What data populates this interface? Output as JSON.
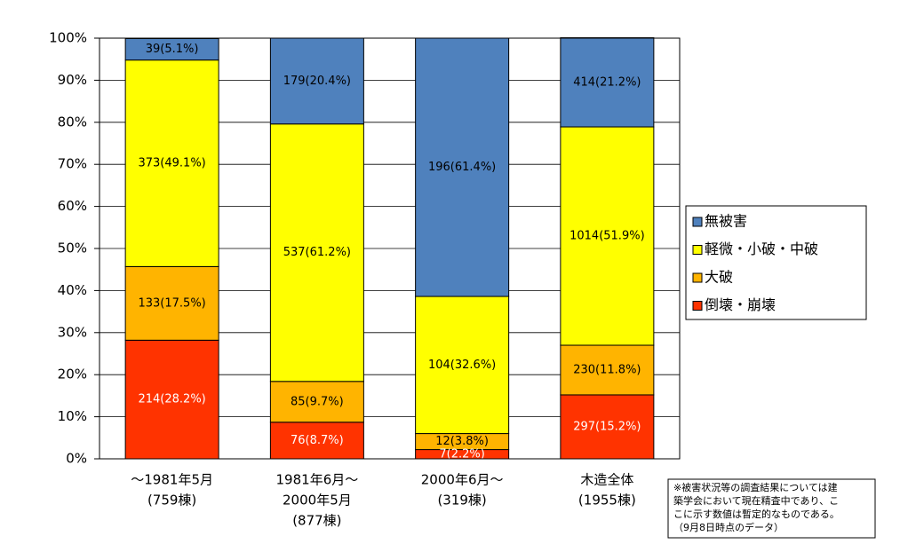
{
  "chart_data": {
    "type": "stacked_bar_100",
    "categories": [
      [
        "～1981年5月",
        "(759棟)"
      ],
      [
        "1981年6月～",
        "2000年5月",
        "(877棟)"
      ],
      [
        "2000年6月～",
        "(319棟)"
      ],
      [
        "木造全体",
        "(1955棟)"
      ]
    ],
    "series": [
      {
        "name": "倒壊・崩壊",
        "color": "#ff3300",
        "label_color": "#ffffff",
        "values": [
          28.2,
          8.7,
          2.2,
          15.2
        ],
        "value_labels": [
          "214(28.2%)",
          "76(8.7%)",
          "7(2.2%)",
          "297(15.2%)"
        ]
      },
      {
        "name": "大破",
        "color": "#ffb400",
        "label_color": "#000000",
        "values": [
          17.5,
          9.7,
          3.8,
          11.8
        ],
        "value_labels": [
          "133(17.5%)",
          "85(9.7%)",
          "12(3.8%)",
          "230(11.8%)"
        ]
      },
      {
        "name": "軽微・小破・中破",
        "color": "#ffff00",
        "label_color": "#000000",
        "values": [
          49.1,
          61.2,
          32.6,
          51.9
        ],
        "value_labels": [
          "373(49.1%)",
          "537(61.2%)",
          "104(32.6%)",
          "1014(51.9%)"
        ]
      },
      {
        "name": "無被害",
        "color": "#4f81bd",
        "label_color": "#000000",
        "values": [
          5.1,
          20.4,
          61.4,
          21.2
        ],
        "value_labels": [
          "39(5.1%)",
          "179(20.4%)",
          "196(61.4%)",
          "414(21.2%)"
        ]
      }
    ],
    "ylim": [
      0,
      100
    ],
    "yticks": [
      {
        "value": 0,
        "label": "0%"
      },
      {
        "value": 10,
        "label": "10%"
      },
      {
        "value": 20,
        "label": "20%"
      },
      {
        "value": 30,
        "label": "30%"
      },
      {
        "value": 40,
        "label": "40%"
      },
      {
        "value": 50,
        "label": "50%"
      },
      {
        "value": 60,
        "label": "60%"
      },
      {
        "value": 70,
        "label": "70%"
      },
      {
        "value": 80,
        "label": "80%"
      },
      {
        "value": 90,
        "label": "90%"
      },
      {
        "value": 100,
        "label": "100%"
      }
    ],
    "grid": true,
    "legend": "right",
    "note": [
      "※被害状況等の調査結果については建",
      "築学会において現在精査中であり、こ",
      "こに示す数値は暫定的なものである。",
      "（9月8日時点のデータ）"
    ]
  }
}
